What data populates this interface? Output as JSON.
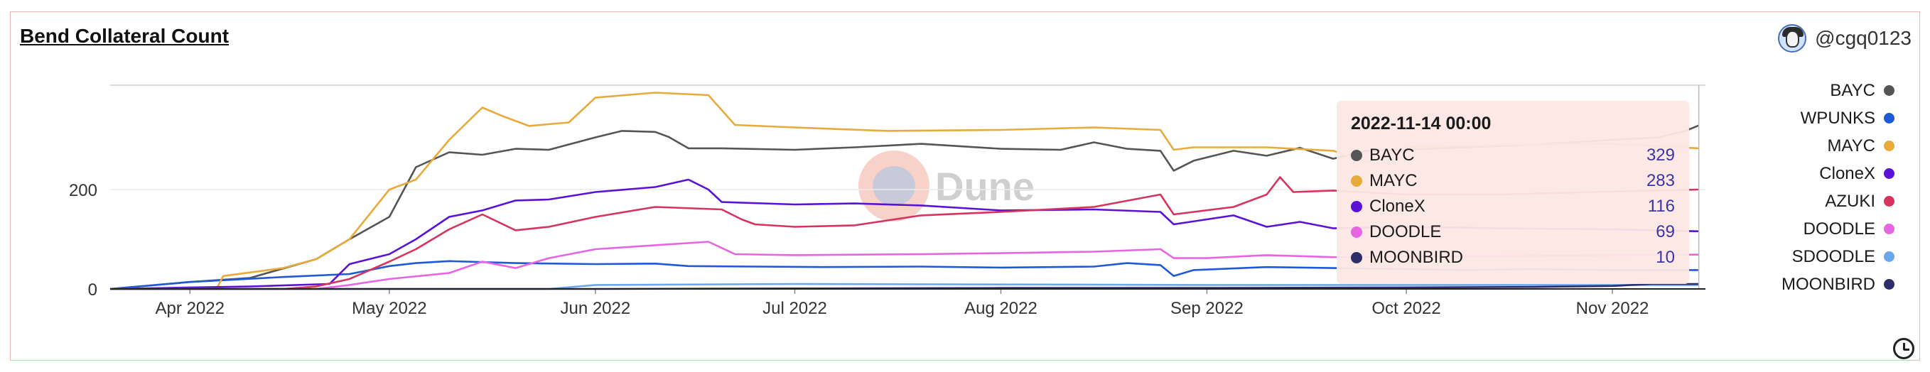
{
  "chart_title": "Bend Collateral Count",
  "author": "@cgq0123",
  "watermark": "Dune",
  "tooltip": {
    "title": "2022-11-14 00:00",
    "rows": [
      {
        "label": "BAYC",
        "value": "329",
        "color": "#555555"
      },
      {
        "label": "MAYC",
        "value": "283",
        "color": "#e8aa3b"
      },
      {
        "label": "CloneX",
        "value": "116",
        "color": "#5a12d6"
      },
      {
        "label": "DOODLE",
        "value": "69",
        "color": "#e765e2"
      },
      {
        "label": "MOONBIRD",
        "value": "10",
        "color": "#2d2d6c"
      }
    ]
  },
  "chart_data": {
    "type": "line",
    "title": "Bend Collateral Count",
    "xlabel": "",
    "ylabel": "",
    "x_range": [
      "2022-03-20",
      "2022-11-15"
    ],
    "ylim": [
      0,
      410
    ],
    "yticks": [
      0,
      200
    ],
    "xtick_labels": [
      "Apr 2022",
      "May 2022",
      "Jun 2022",
      "Jul 2022",
      "Aug 2022",
      "Sep 2022",
      "Oct 2022",
      "Nov 2022"
    ],
    "xtick_dates": [
      "2022-04-01",
      "2022-05-01",
      "2022-06-01",
      "2022-07-01",
      "2022-08-01",
      "2022-09-01",
      "2022-10-01",
      "2022-11-01"
    ],
    "grid": true,
    "legend_position": "right",
    "series": [
      {
        "name": "BAYC",
        "color": "#555555",
        "points": [
          [
            "2022-03-20",
            0
          ],
          [
            "2022-04-01",
            14
          ],
          [
            "2022-04-10",
            22
          ],
          [
            "2022-04-20",
            60
          ],
          [
            "2022-04-25",
            100
          ],
          [
            "2022-05-01",
            145
          ],
          [
            "2022-05-05",
            245
          ],
          [
            "2022-05-10",
            275
          ],
          [
            "2022-05-15",
            270
          ],
          [
            "2022-05-20",
            282
          ],
          [
            "2022-05-25",
            280
          ],
          [
            "2022-06-01",
            305
          ],
          [
            "2022-06-05",
            318
          ],
          [
            "2022-06-10",
            316
          ],
          [
            "2022-06-12",
            306
          ],
          [
            "2022-06-15",
            283
          ],
          [
            "2022-06-20",
            283
          ],
          [
            "2022-07-01",
            280
          ],
          [
            "2022-07-10",
            285
          ],
          [
            "2022-07-20",
            292
          ],
          [
            "2022-08-01",
            282
          ],
          [
            "2022-08-10",
            280
          ],
          [
            "2022-08-15",
            295
          ],
          [
            "2022-08-20",
            282
          ],
          [
            "2022-08-25",
            278
          ],
          [
            "2022-08-27",
            238
          ],
          [
            "2022-08-30",
            258
          ],
          [
            "2022-09-05",
            278
          ],
          [
            "2022-09-10",
            268
          ],
          [
            "2022-09-15",
            284
          ],
          [
            "2022-09-20",
            262
          ],
          [
            "2022-09-25",
            278
          ],
          [
            "2022-10-01",
            280
          ],
          [
            "2022-10-10",
            285
          ],
          [
            "2022-10-20",
            290
          ],
          [
            "2022-11-01",
            300
          ],
          [
            "2022-11-08",
            305
          ],
          [
            "2022-11-12",
            318
          ],
          [
            "2022-11-14",
            329
          ]
        ]
      },
      {
        "name": "WPUNKS",
        "color": "#1f5ad6",
        "points": [
          [
            "2022-03-20",
            0
          ],
          [
            "2022-04-01",
            14
          ],
          [
            "2022-04-15",
            24
          ],
          [
            "2022-04-25",
            30
          ],
          [
            "2022-05-01",
            46
          ],
          [
            "2022-05-05",
            52
          ],
          [
            "2022-05-10",
            56
          ],
          [
            "2022-05-20",
            52
          ],
          [
            "2022-06-01",
            50
          ],
          [
            "2022-06-10",
            51
          ],
          [
            "2022-06-15",
            46
          ],
          [
            "2022-06-25",
            45
          ],
          [
            "2022-07-05",
            44
          ],
          [
            "2022-07-20",
            45
          ],
          [
            "2022-08-01",
            43
          ],
          [
            "2022-08-15",
            45
          ],
          [
            "2022-08-20",
            52
          ],
          [
            "2022-08-25",
            48
          ],
          [
            "2022-08-27",
            26
          ],
          [
            "2022-08-30",
            38
          ],
          [
            "2022-09-10",
            44
          ],
          [
            "2022-09-20",
            42
          ],
          [
            "2022-10-01",
            40
          ],
          [
            "2022-10-10",
            38
          ],
          [
            "2022-10-20",
            40
          ],
          [
            "2022-11-01",
            38
          ],
          [
            "2022-11-14",
            38
          ]
        ]
      },
      {
        "name": "MAYC",
        "color": "#e8aa3b",
        "points": [
          [
            "2022-03-20",
            0
          ],
          [
            "2022-04-05",
            0
          ],
          [
            "2022-04-06",
            26
          ],
          [
            "2022-04-15",
            42
          ],
          [
            "2022-04-20",
            60
          ],
          [
            "2022-04-25",
            100
          ],
          [
            "2022-05-01",
            200
          ],
          [
            "2022-05-05",
            220
          ],
          [
            "2022-05-10",
            300
          ],
          [
            "2022-05-15",
            365
          ],
          [
            "2022-05-18",
            348
          ],
          [
            "2022-05-22",
            328
          ],
          [
            "2022-05-28",
            335
          ],
          [
            "2022-06-01",
            385
          ],
          [
            "2022-06-10",
            395
          ],
          [
            "2022-06-18",
            390
          ],
          [
            "2022-06-22",
            330
          ],
          [
            "2022-07-01",
            325
          ],
          [
            "2022-07-15",
            318
          ],
          [
            "2022-08-01",
            320
          ],
          [
            "2022-08-15",
            325
          ],
          [
            "2022-08-25",
            320
          ],
          [
            "2022-08-27",
            280
          ],
          [
            "2022-08-30",
            285
          ],
          [
            "2022-09-10",
            285
          ],
          [
            "2022-09-20",
            278
          ],
          [
            "2022-09-25",
            255
          ],
          [
            "2022-10-01",
            285
          ],
          [
            "2022-10-15",
            290
          ],
          [
            "2022-11-01",
            292
          ],
          [
            "2022-11-14",
            283
          ]
        ]
      },
      {
        "name": "CloneX",
        "color": "#5a12d6",
        "points": [
          [
            "2022-03-20",
            0
          ],
          [
            "2022-04-10",
            5
          ],
          [
            "2022-04-22",
            10
          ],
          [
            "2022-04-25",
            50
          ],
          [
            "2022-05-01",
            70
          ],
          [
            "2022-05-05",
            100
          ],
          [
            "2022-05-10",
            145
          ],
          [
            "2022-05-15",
            158
          ],
          [
            "2022-05-20",
            178
          ],
          [
            "2022-05-25",
            180
          ],
          [
            "2022-06-01",
            195
          ],
          [
            "2022-06-10",
            205
          ],
          [
            "2022-06-15",
            220
          ],
          [
            "2022-06-18",
            200
          ],
          [
            "2022-06-20",
            175
          ],
          [
            "2022-07-01",
            170
          ],
          [
            "2022-07-10",
            172
          ],
          [
            "2022-07-20",
            168
          ],
          [
            "2022-08-01",
            158
          ],
          [
            "2022-08-15",
            160
          ],
          [
            "2022-08-25",
            155
          ],
          [
            "2022-08-27",
            130
          ],
          [
            "2022-09-01",
            140
          ],
          [
            "2022-09-05",
            148
          ],
          [
            "2022-09-10",
            125
          ],
          [
            "2022-09-15",
            135
          ],
          [
            "2022-09-20",
            122
          ],
          [
            "2022-10-01",
            125
          ],
          [
            "2022-10-15",
            122
          ],
          [
            "2022-11-01",
            120
          ],
          [
            "2022-11-14",
            116
          ]
        ]
      },
      {
        "name": "AZUKI",
        "color": "#d6335e",
        "points": [
          [
            "2022-03-20",
            0
          ],
          [
            "2022-04-15",
            0
          ],
          [
            "2022-04-20",
            5
          ],
          [
            "2022-04-25",
            20
          ],
          [
            "2022-05-01",
            55
          ],
          [
            "2022-05-05",
            80
          ],
          [
            "2022-05-10",
            120
          ],
          [
            "2022-05-15",
            150
          ],
          [
            "2022-05-20",
            118
          ],
          [
            "2022-05-25",
            125
          ],
          [
            "2022-06-01",
            145
          ],
          [
            "2022-06-10",
            165
          ],
          [
            "2022-06-20",
            160
          ],
          [
            "2022-06-23",
            140
          ],
          [
            "2022-06-25",
            130
          ],
          [
            "2022-07-01",
            125
          ],
          [
            "2022-07-10",
            128
          ],
          [
            "2022-07-20",
            148
          ],
          [
            "2022-08-01",
            155
          ],
          [
            "2022-08-15",
            165
          ],
          [
            "2022-08-25",
            190
          ],
          [
            "2022-08-27",
            150
          ],
          [
            "2022-09-05",
            165
          ],
          [
            "2022-09-10",
            190
          ],
          [
            "2022-09-12",
            225
          ],
          [
            "2022-09-14",
            195
          ],
          [
            "2022-09-20",
            198
          ],
          [
            "2022-10-01",
            190
          ],
          [
            "2022-10-15",
            190
          ],
          [
            "2022-11-01",
            196
          ],
          [
            "2022-11-14",
            200
          ]
        ]
      },
      {
        "name": "DOODLE",
        "color": "#e765e2",
        "points": [
          [
            "2022-03-20",
            0
          ],
          [
            "2022-04-20",
            0
          ],
          [
            "2022-04-25",
            8
          ],
          [
            "2022-05-01",
            20
          ],
          [
            "2022-05-10",
            32
          ],
          [
            "2022-05-15",
            55
          ],
          [
            "2022-05-20",
            42
          ],
          [
            "2022-05-25",
            62
          ],
          [
            "2022-06-01",
            80
          ],
          [
            "2022-06-10",
            88
          ],
          [
            "2022-06-18",
            95
          ],
          [
            "2022-06-22",
            70
          ],
          [
            "2022-07-01",
            68
          ],
          [
            "2022-07-20",
            70
          ],
          [
            "2022-08-01",
            72
          ],
          [
            "2022-08-15",
            75
          ],
          [
            "2022-08-25",
            80
          ],
          [
            "2022-08-27",
            62
          ],
          [
            "2022-09-01",
            62
          ],
          [
            "2022-09-10",
            68
          ],
          [
            "2022-09-20",
            64
          ],
          [
            "2022-10-01",
            65
          ],
          [
            "2022-10-15",
            66
          ],
          [
            "2022-11-01",
            68
          ],
          [
            "2022-11-14",
            69
          ]
        ]
      },
      {
        "name": "SDOODLE",
        "color": "#6aa7ec",
        "points": [
          [
            "2022-03-20",
            0
          ],
          [
            "2022-05-25",
            0
          ],
          [
            "2022-06-01",
            8
          ],
          [
            "2022-07-01",
            10
          ],
          [
            "2022-08-01",
            9
          ],
          [
            "2022-09-01",
            8
          ],
          [
            "2022-10-01",
            8
          ],
          [
            "2022-11-01",
            8
          ],
          [
            "2022-11-14",
            8
          ]
        ]
      },
      {
        "name": "MOONBIRD",
        "color": "#2d2d6c",
        "points": [
          [
            "2022-03-20",
            0
          ],
          [
            "2022-05-15",
            0
          ],
          [
            "2022-06-01",
            0
          ],
          [
            "2022-07-01",
            1
          ],
          [
            "2022-08-01",
            2
          ],
          [
            "2022-09-01",
            2
          ],
          [
            "2022-10-01",
            3
          ],
          [
            "2022-10-20",
            4
          ],
          [
            "2022-11-01",
            6
          ],
          [
            "2022-11-07",
            10
          ],
          [
            "2022-11-14",
            10
          ]
        ]
      }
    ]
  }
}
